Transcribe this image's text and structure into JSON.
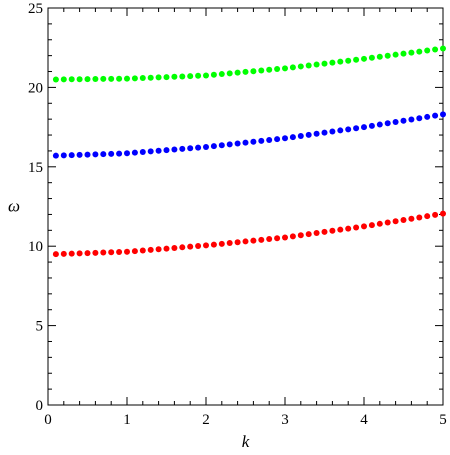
{
  "chart_data": {
    "type": "scatter",
    "title": "",
    "xlabel": "k",
    "ylabel": "ω",
    "xlim": [
      0,
      5
    ],
    "ylim": [
      0,
      25
    ],
    "x_ticks": [
      0,
      1,
      2,
      3,
      4,
      5
    ],
    "y_ticks": [
      0,
      5,
      10,
      15,
      20,
      25
    ],
    "grid": false,
    "legend": "none",
    "series": [
      {
        "color": "#ff0000",
        "k_start": 0.1,
        "k_end": 5.0,
        "n_points": 50,
        "x": [
          0.1,
          1.0,
          2.0,
          3.0,
          4.0,
          5.0
        ],
        "y": [
          9.5,
          9.65,
          10.05,
          10.55,
          11.25,
          12.05
        ]
      },
      {
        "color": "#0000ff",
        "k_start": 0.1,
        "k_end": 5.0,
        "n_points": 50,
        "x": [
          0.1,
          1.0,
          2.0,
          3.0,
          4.0,
          5.0
        ],
        "y": [
          15.7,
          15.85,
          16.25,
          16.8,
          17.5,
          18.3
        ]
      },
      {
        "color": "#00ff00",
        "k_start": 0.1,
        "k_end": 5.0,
        "n_points": 50,
        "x": [
          0.1,
          1.0,
          2.0,
          3.0,
          4.0,
          5.0
        ],
        "y": [
          20.5,
          20.55,
          20.75,
          21.2,
          21.8,
          22.45
        ]
      }
    ]
  }
}
